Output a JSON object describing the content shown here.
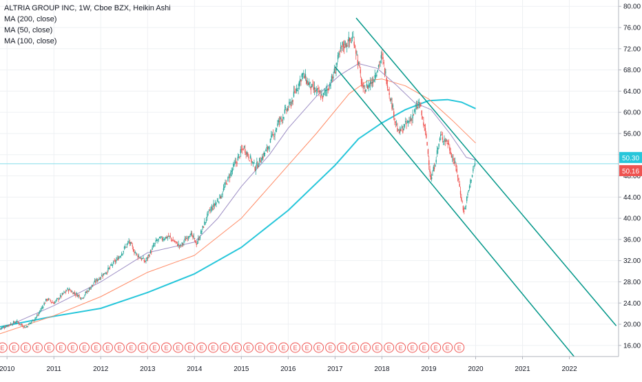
{
  "header": {
    "title": "ALTRIA GROUP INC, 1W, Cboe BZX, Heikin Ashi",
    "indicators": [
      "MA (200, close)",
      "MA (50, close)",
      "MA (100, close)"
    ]
  },
  "colors": {
    "up": "#26a69a",
    "down": "#ef5350",
    "ma200": "#26c6da",
    "ma50": "#9c8dc4",
    "ma100": "#ff8a65",
    "channel": "#009688",
    "grid": "#eef0f3",
    "axis_text": "#131722",
    "price_line": "#80deea"
  },
  "chart_data": {
    "type": "candlestick",
    "title": "ALTRIA GROUP INC, 1W, Cboe BZX, Heikin Ashi",
    "x_ticks": [
      "2010",
      "2011",
      "2012",
      "2013",
      "2014",
      "2015",
      "2016",
      "2017",
      "2018",
      "2019",
      "2020",
      "2021",
      "2022"
    ],
    "y_ticks": [
      "80.00",
      "76.00",
      "72.00",
      "68.00",
      "64.00",
      "60.00",
      "56.00",
      "52.00",
      "48.00",
      "44.00",
      "40.00",
      "36.00",
      "32.00",
      "28.00",
      "24.00",
      "20.00",
      "16.00"
    ],
    "xlim": [
      2009.85,
      2023.05
    ],
    "ylim": [
      13.9,
      81.2
    ],
    "price_labels": [
      {
        "value": 50.3,
        "text": "50.30",
        "color": "#26c6da"
      },
      {
        "value": 50.16,
        "text": "50.16",
        "color": "#ef5350"
      }
    ],
    "earnings_marker_label": "E",
    "earnings_count": 40,
    "earnings_start": 2009.9,
    "earnings_step": 0.25,
    "price_series": [
      {
        "x": 2009.85,
        "y": 19.2
      },
      {
        "x": 2010.2,
        "y": 20.5
      },
      {
        "x": 2010.4,
        "y": 19.4
      },
      {
        "x": 2010.65,
        "y": 21.6
      },
      {
        "x": 2010.85,
        "y": 24.8
      },
      {
        "x": 2011.0,
        "y": 24.0
      },
      {
        "x": 2011.3,
        "y": 26.6
      },
      {
        "x": 2011.6,
        "y": 25.0
      },
      {
        "x": 2011.9,
        "y": 28.2
      },
      {
        "x": 2012.15,
        "y": 30.2
      },
      {
        "x": 2012.4,
        "y": 32.8
      },
      {
        "x": 2012.6,
        "y": 35.6
      },
      {
        "x": 2012.75,
        "y": 33.3
      },
      {
        "x": 2012.95,
        "y": 31.8
      },
      {
        "x": 2013.2,
        "y": 35.8
      },
      {
        "x": 2013.45,
        "y": 36.6
      },
      {
        "x": 2013.7,
        "y": 34.6
      },
      {
        "x": 2013.9,
        "y": 37.2
      },
      {
        "x": 2014.05,
        "y": 35.2
      },
      {
        "x": 2014.3,
        "y": 41.0
      },
      {
        "x": 2014.55,
        "y": 44.0
      },
      {
        "x": 2014.8,
        "y": 49.0
      },
      {
        "x": 2015.05,
        "y": 53.5
      },
      {
        "x": 2015.3,
        "y": 49.5
      },
      {
        "x": 2015.55,
        "y": 53.0
      },
      {
        "x": 2015.8,
        "y": 58.2
      },
      {
        "x": 2016.05,
        "y": 61.5
      },
      {
        "x": 2016.3,
        "y": 67.2
      },
      {
        "x": 2016.5,
        "y": 64.5
      },
      {
        "x": 2016.75,
        "y": 63.0
      },
      {
        "x": 2016.95,
        "y": 66.5
      },
      {
        "x": 2017.15,
        "y": 72.5
      },
      {
        "x": 2017.4,
        "y": 74.0
      },
      {
        "x": 2017.6,
        "y": 64.0
      },
      {
        "x": 2017.8,
        "y": 66.0
      },
      {
        "x": 2018.0,
        "y": 70.5
      },
      {
        "x": 2018.2,
        "y": 62.0
      },
      {
        "x": 2018.35,
        "y": 56.0
      },
      {
        "x": 2018.6,
        "y": 58.5
      },
      {
        "x": 2018.8,
        "y": 61.8
      },
      {
        "x": 2018.95,
        "y": 55.0
      },
      {
        "x": 2019.05,
        "y": 47.0
      },
      {
        "x": 2019.25,
        "y": 55.5
      },
      {
        "x": 2019.4,
        "y": 54.5
      },
      {
        "x": 2019.6,
        "y": 49.0
      },
      {
        "x": 2019.75,
        "y": 41.0
      },
      {
        "x": 2019.95,
        "y": 49.5
      },
      {
        "x": 2020.0,
        "y": 50.3
      }
    ],
    "ma200": [
      {
        "x": 2009.85,
        "y": 19.5
      },
      {
        "x": 2011.0,
        "y": 21.5
      },
      {
        "x": 2012.0,
        "y": 23.0
      },
      {
        "x": 2013.0,
        "y": 26.0
      },
      {
        "x": 2014.0,
        "y": 29.5
      },
      {
        "x": 2015.0,
        "y": 34.5
      },
      {
        "x": 2016.0,
        "y": 41.5
      },
      {
        "x": 2017.0,
        "y": 50.0
      },
      {
        "x": 2017.5,
        "y": 55.0
      },
      {
        "x": 2018.0,
        "y": 58.0
      },
      {
        "x": 2018.5,
        "y": 60.5
      },
      {
        "x": 2019.0,
        "y": 62.2
      },
      {
        "x": 2019.4,
        "y": 62.4
      },
      {
        "x": 2019.7,
        "y": 61.9
      },
      {
        "x": 2020.0,
        "y": 60.7
      }
    ],
    "ma100": [
      {
        "x": 2009.85,
        "y": 18.2
      },
      {
        "x": 2011.0,
        "y": 21.6
      },
      {
        "x": 2012.0,
        "y": 25.2
      },
      {
        "x": 2013.0,
        "y": 29.8
      },
      {
        "x": 2014.0,
        "y": 33.0
      },
      {
        "x": 2015.0,
        "y": 40.0
      },
      {
        "x": 2016.0,
        "y": 50.0
      },
      {
        "x": 2016.6,
        "y": 56.0
      },
      {
        "x": 2017.3,
        "y": 63.5
      },
      {
        "x": 2017.7,
        "y": 66.0
      },
      {
        "x": 2018.0,
        "y": 66.3
      },
      {
        "x": 2018.5,
        "y": 65.0
      },
      {
        "x": 2019.0,
        "y": 62.5
      },
      {
        "x": 2019.5,
        "y": 58.5
      },
      {
        "x": 2020.0,
        "y": 54.2
      }
    ],
    "ma50": [
      {
        "x": 2009.85,
        "y": 19.0
      },
      {
        "x": 2011.0,
        "y": 23.5
      },
      {
        "x": 2012.0,
        "y": 28.0
      },
      {
        "x": 2013.0,
        "y": 33.5
      },
      {
        "x": 2014.0,
        "y": 35.5
      },
      {
        "x": 2014.5,
        "y": 40.0
      },
      {
        "x": 2015.0,
        "y": 46.0
      },
      {
        "x": 2015.6,
        "y": 52.0
      },
      {
        "x": 2016.0,
        "y": 57.0
      },
      {
        "x": 2016.6,
        "y": 63.0
      },
      {
        "x": 2017.1,
        "y": 67.0
      },
      {
        "x": 2017.5,
        "y": 69.2
      },
      {
        "x": 2017.9,
        "y": 68.3
      },
      {
        "x": 2018.3,
        "y": 65.2
      },
      {
        "x": 2018.7,
        "y": 61.8
      },
      {
        "x": 2019.05,
        "y": 60.5
      },
      {
        "x": 2019.45,
        "y": 56.0
      },
      {
        "x": 2019.8,
        "y": 51.5
      },
      {
        "x": 2020.0,
        "y": 51.0
      }
    ],
    "channel_upper": {
      "x1": 2017.45,
      "y1": 77.8,
      "x2": 2023.0,
      "y2": 19.7
    },
    "channel_lower": {
      "x1": 2017.0,
      "y1": 68.6,
      "x2": 2022.1,
      "y2": 13.9
    },
    "last_price": 50.3
  }
}
